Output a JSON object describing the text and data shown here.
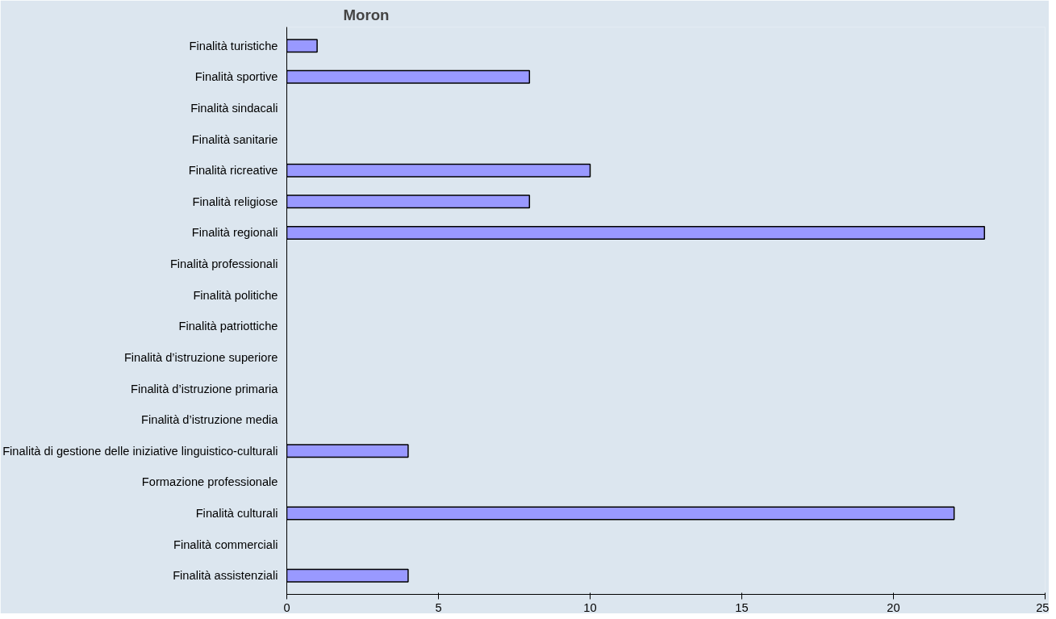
{
  "chart_data": {
    "type": "bar",
    "orientation": "horizontal",
    "title": "Moron",
    "categories": [
      "Finalità turistiche",
      "Finalità sportive",
      "Finalità sindacali",
      "Finalità sanitarie",
      "Finalità ricreative",
      "Finalità religiose",
      "Finalità regionali",
      "Finalità professionali",
      "Finalità politiche",
      "Finalità patriottiche",
      "Finalità d’istruzione superiore",
      "Finalità d’istruzione primaria",
      "Finalità d’istruzione media",
      "Finalità di gestione delle iniziative linguistico-culturali",
      "Formazione professionale",
      "Finalità culturali",
      "Finalità commerciali",
      "Finalità assistenziali"
    ],
    "values": [
      1,
      8,
      0,
      0,
      10,
      8,
      23,
      0,
      0,
      0,
      0,
      0,
      0,
      4,
      0,
      22,
      0,
      4
    ],
    "color": "#9999ff",
    "xlim": [
      0,
      25
    ],
    "xticks": [
      0,
      5,
      10,
      15,
      20,
      25
    ],
    "grid": false
  }
}
